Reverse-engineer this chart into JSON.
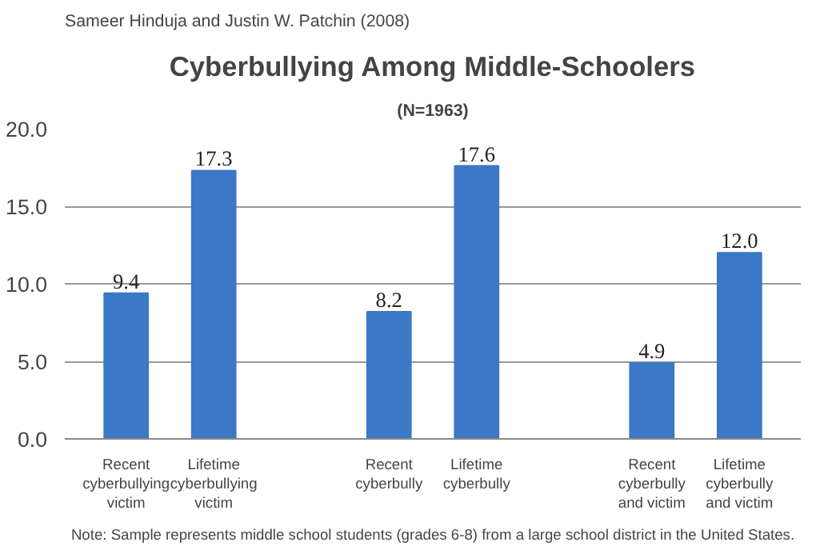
{
  "chart_data": {
    "type": "bar",
    "title": "Cyberbullying Among Middle-Schoolers",
    "subtitle": "(N=1963)",
    "annotations": [
      "Sameer Hinduja and Justin W. Patchin (2008)",
      "Note: Sample represents middle school students (grades 6-8) from a large school district in the United States."
    ],
    "categories": [
      "Recent\ncyberbullying\nvictim",
      "Lifetime\ncyberbullying\nvictim",
      null,
      "Recent\ncyberbully",
      "Lifetime\ncyberbully",
      null,
      "Recent\ncyberbully\nand victim",
      "Lifetime\ncyberbully\nand victim"
    ],
    "values": [
      9.4,
      17.3,
      null,
      8.2,
      17.6,
      null,
      4.9,
      12.0
    ],
    "color": "#3b78c6",
    "ylim": [
      0,
      20
    ],
    "yticks": [
      {
        "value": 0,
        "label": "0.0"
      },
      {
        "value": 5,
        "label": "5.0"
      },
      {
        "value": 10,
        "label": "10.0"
      },
      {
        "value": 15,
        "label": "15.0"
      },
      {
        "value": 20,
        "label": "20.0"
      }
    ],
    "value_labels": [
      "9.4",
      "17.3",
      null,
      "8.2",
      "17.6",
      null,
      "4.9",
      "12.0"
    ],
    "grid": "y"
  }
}
